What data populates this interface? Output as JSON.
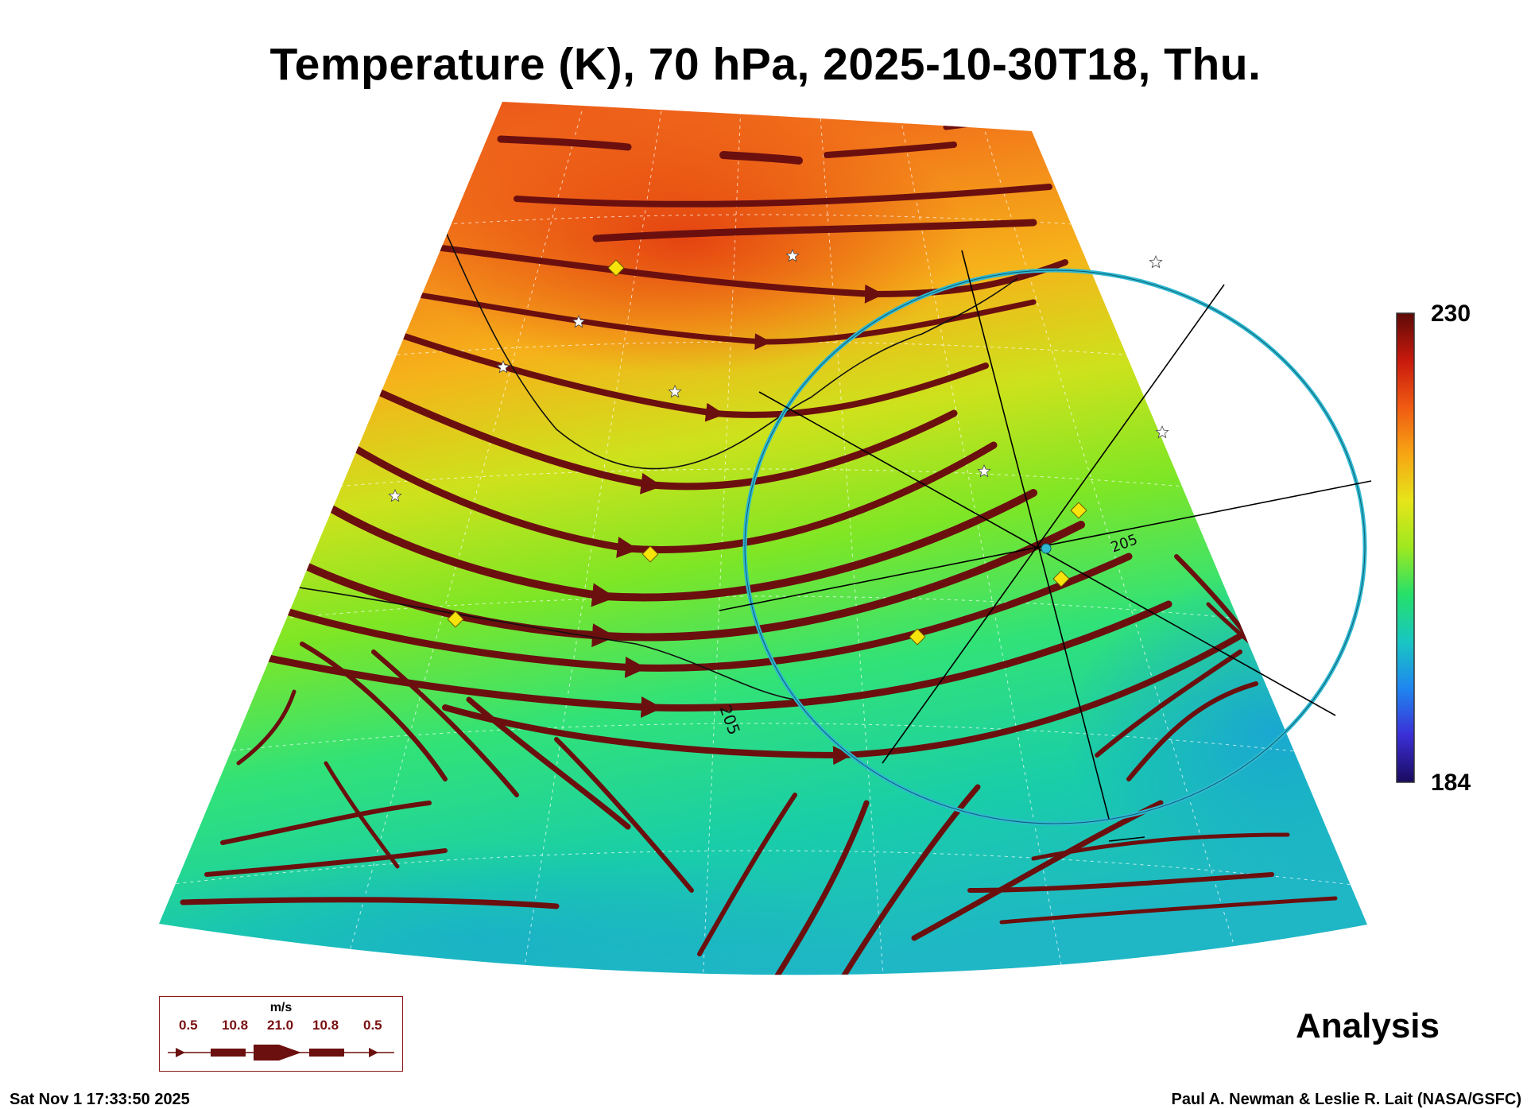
{
  "title": "Temperature (K), 70 hPa, 2025-10-30T18, Thu.",
  "colorbar": {
    "max": "230",
    "min": "184",
    "colors": [
      "#1a0a5e",
      "#3b2fd6",
      "#1f86f0",
      "#19c6c2",
      "#25e06a",
      "#9ee81f",
      "#e6e51a",
      "#f7a514",
      "#f05a12",
      "#c8190d",
      "#5e0a07"
    ]
  },
  "contour_labels": [
    "205",
    "205"
  ],
  "wind_legend": {
    "unit": "m/s",
    "values": [
      "0.5",
      "10.8",
      "21.0",
      "10.8",
      "0.5"
    ],
    "color": "#6b0f0f"
  },
  "stream_color": "#6b0f0f",
  "analysis_label": "Analysis",
  "footer": {
    "timestamp": "Sat Nov  1 17:33:50 2025",
    "credit": "Paul A. Newman & Leslie R. Lait (NASA/GSFC)"
  },
  "overlay": {
    "ring_color": "#2fb8d2",
    "marker_color": "#f6e40a"
  }
}
